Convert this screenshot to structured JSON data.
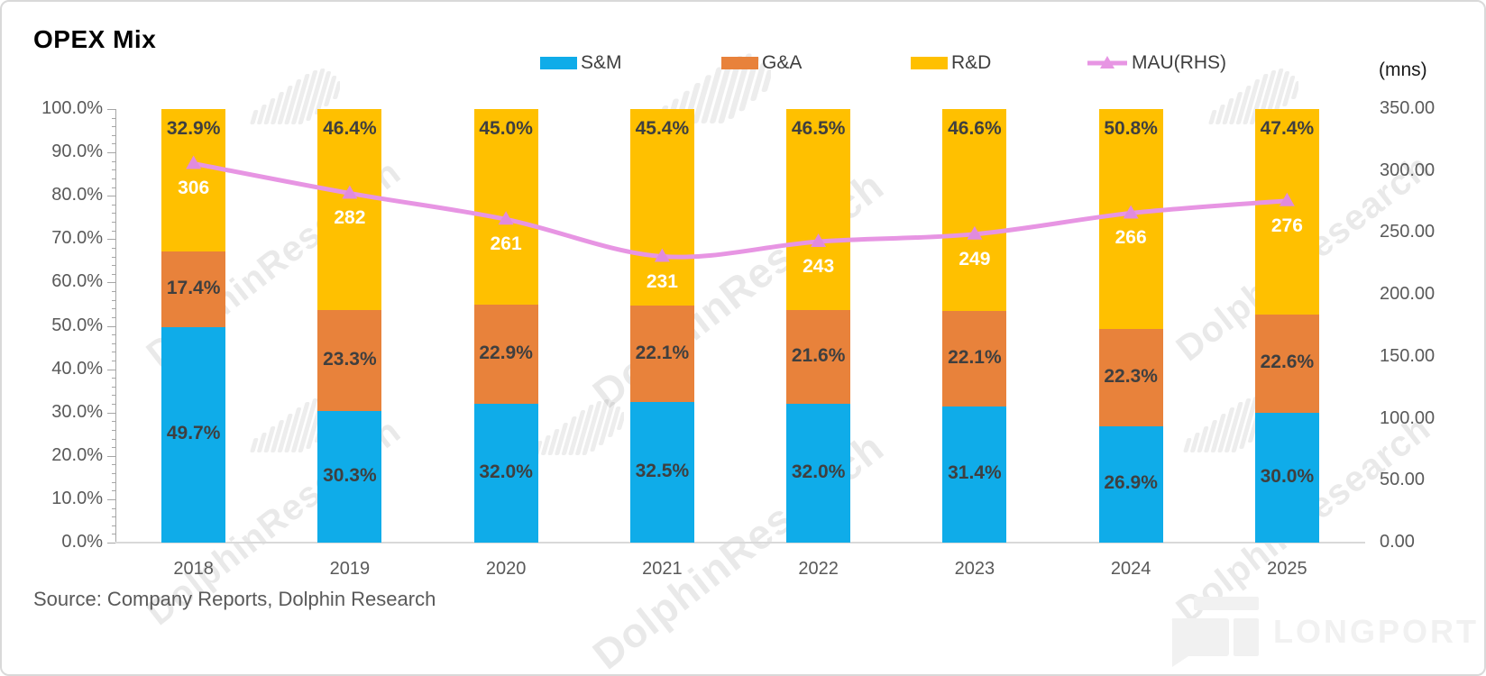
{
  "title": "OPEX Mix",
  "source": "Source: Company Reports, Dolphin Research",
  "watermark_text": "DolphinResearch",
  "brand_logo_text": "LONGPORT",
  "legend": [
    {
      "label": "S&M",
      "color": "#0FACE9",
      "type": "box"
    },
    {
      "label": "G&A",
      "color": "#E8823B",
      "type": "box"
    },
    {
      "label": "R&D",
      "color": "#FFC000",
      "type": "box"
    },
    {
      "label": "MAU(RHS)",
      "color": "#E795E3",
      "type": "line"
    }
  ],
  "chart_data": {
    "type": "bar",
    "subtype": "stacked-percent-with-line",
    "categories": [
      "2018",
      "2019",
      "2020",
      "2021",
      "2022",
      "2023",
      "2024",
      "2025"
    ],
    "series": [
      {
        "name": "S&M",
        "type": "bar",
        "axis": "left",
        "color": "#0FACE9",
        "values": [
          49.7,
          30.3,
          32.0,
          32.5,
          32.0,
          31.4,
          26.9,
          30.0
        ],
        "labels": [
          "49.7%",
          "30.3%",
          "32.0%",
          "32.5%",
          "32.0%",
          "31.4%",
          "26.9%",
          "30.0%"
        ]
      },
      {
        "name": "G&A",
        "type": "bar",
        "axis": "left",
        "color": "#E8823B",
        "values": [
          17.4,
          23.3,
          22.9,
          22.1,
          21.6,
          22.1,
          22.3,
          22.6
        ],
        "labels": [
          "17.4%",
          "23.3%",
          "22.9%",
          "22.1%",
          "21.6%",
          "22.1%",
          "22.3%",
          "22.6%"
        ]
      },
      {
        "name": "R&D",
        "type": "bar",
        "axis": "left",
        "color": "#FFC000",
        "values": [
          32.9,
          46.4,
          45.0,
          45.4,
          46.5,
          46.6,
          50.8,
          47.4
        ],
        "labels": [
          "32.9%",
          "46.4%",
          "45.0%",
          "45.4%",
          "46.5%",
          "46.6%",
          "50.8%",
          "47.4%"
        ]
      },
      {
        "name": "MAU(RHS)",
        "type": "line",
        "axis": "right",
        "color": "#E795E3",
        "values": [
          306,
          282,
          261,
          231,
          243,
          249,
          266,
          276
        ],
        "labels": [
          "306",
          "282",
          "261",
          "231",
          "243",
          "249",
          "266",
          "276"
        ]
      }
    ],
    "left_axis": {
      "min": 0,
      "max": 100,
      "step": 10,
      "format": "percent",
      "ticks": [
        "0.0%",
        "10.0%",
        "20.0%",
        "30.0%",
        "40.0%",
        "50.0%",
        "60.0%",
        "70.0%",
        "80.0%",
        "90.0%",
        "100.0%"
      ]
    },
    "right_axis": {
      "min": 0,
      "max": 350,
      "step": 50,
      "unit": "(mns)",
      "ticks": [
        "0.00",
        "50.00",
        "100.00",
        "150.00",
        "200.00",
        "250.00",
        "300.00",
        "350.00"
      ]
    },
    "legend_position": "top",
    "grid": false
  }
}
